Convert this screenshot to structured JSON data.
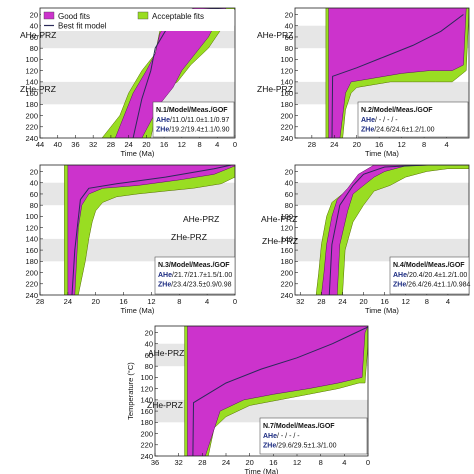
{
  "figure": {
    "legend": {
      "good_label": "Good fits",
      "acceptable_label": "Acceptable fits",
      "best_label": "Best fit model"
    },
    "xlabel": "Time (Ma)",
    "ylabel": "Temperature (°C)",
    "zone_labels": {
      "ahe": "AHe-PRZ",
      "zhe": "ZHe-PRZ"
    },
    "colors": {
      "good": "#cc33cc",
      "acceptable": "#99dd22",
      "best": "#2a2a5a",
      "band": "#e6e6e6",
      "panel_bg": "#ffffff"
    }
  },
  "chart_data": [
    {
      "id": "n1",
      "type": "area",
      "title": "N.1/Model/Meas./GOF",
      "rows": [
        "AHe/11.0/11.0±1.1/0.97",
        "ZHe/19.2/19.4±1.1/0.90"
      ],
      "x_ticks": [
        44,
        40,
        36,
        32,
        28,
        24,
        20,
        16,
        12,
        8,
        4,
        0
      ],
      "xlim": [
        44,
        0
      ],
      "y_ticks": [
        20,
        40,
        60,
        80,
        100,
        120,
        140,
        160,
        180,
        200,
        220,
        240
      ],
      "ylim": [
        0,
        240
      ],
      "ahe_band": [
        40,
        80
      ],
      "zhe_band": [
        140,
        180
      ],
      "acceptable_poly": [
        [
          30,
          240
        ],
        [
          26,
          200
        ],
        [
          24,
          160
        ],
        [
          21,
          120
        ],
        [
          18,
          90
        ],
        [
          17,
          50
        ],
        [
          14,
          15
        ],
        [
          6,
          0
        ],
        [
          0,
          0
        ],
        [
          0,
          8
        ],
        [
          3,
          45
        ],
        [
          6,
          80
        ],
        [
          10,
          110
        ],
        [
          13,
          140
        ],
        [
          17,
          160
        ],
        [
          19,
          240
        ]
      ],
      "good_poly": [
        [
          27,
          240
        ],
        [
          25,
          200
        ],
        [
          23,
          160
        ],
        [
          20,
          120
        ],
        [
          18,
          90
        ],
        [
          17,
          55
        ],
        [
          15,
          25
        ],
        [
          9,
          0
        ],
        [
          2,
          0
        ],
        [
          4,
          30
        ],
        [
          6,
          60
        ],
        [
          9,
          90
        ],
        [
          12,
          120
        ],
        [
          14,
          150
        ],
        [
          17,
          180
        ],
        [
          21,
          240
        ]
      ],
      "best_line": [
        [
          23,
          240
        ],
        [
          21,
          170
        ],
        [
          19,
          120
        ],
        [
          18,
          80
        ],
        [
          15,
          40
        ],
        [
          9,
          12
        ],
        [
          2,
          0
        ]
      ]
    },
    {
      "id": "n2",
      "type": "area",
      "title": "N.2/Model/Meas./GOF",
      "rows": [
        "AHe/ - / - / - ",
        "ZHe/24.6/24.6±1.2/1.00"
      ],
      "x_ticks": [
        28,
        24,
        20,
        16,
        12,
        8,
        4
      ],
      "xlim": [
        31,
        0
      ],
      "y_ticks": [
        20,
        40,
        60,
        80,
        100,
        120,
        140,
        160,
        180,
        200,
        220,
        240
      ],
      "ylim": [
        0,
        240
      ],
      "ahe_band": [
        40,
        80
      ],
      "zhe_band": [
        140,
        180
      ],
      "acceptable_poly": [
        [
          25.5,
          240
        ],
        [
          25.5,
          0
        ],
        [
          0,
          0
        ],
        [
          0,
          10
        ],
        [
          0.5,
          120
        ],
        [
          3,
          140
        ],
        [
          6,
          140
        ],
        [
          10,
          140
        ],
        [
          14,
          140
        ],
        [
          17,
          145
        ],
        [
          20,
          150
        ],
        [
          21,
          160
        ],
        [
          22,
          190
        ],
        [
          22.5,
          240
        ]
      ],
      "good_poly": [
        [
          25,
          240
        ],
        [
          25,
          0
        ],
        [
          0,
          0
        ],
        [
          0.5,
          5
        ],
        [
          1,
          110
        ],
        [
          3,
          120
        ],
        [
          7,
          120
        ],
        [
          12,
          125
        ],
        [
          18,
          135
        ],
        [
          21,
          140
        ],
        [
          22,
          160
        ],
        [
          23,
          240
        ]
      ],
      "best_line": [
        [
          24.4,
          240
        ],
        [
          24.3,
          130
        ],
        [
          20,
          115
        ],
        [
          15,
          95
        ],
        [
          10,
          75
        ],
        [
          5,
          50
        ],
        [
          1,
          20
        ]
      ]
    },
    {
      "id": "n3",
      "type": "area",
      "title": "N.3/Model/Meas./GOF",
      "rows": [
        "AHe/21.7/21.7±1.5/1.00",
        "ZHe/23.4/23.5±0.9/0.98"
      ],
      "x_ticks": [
        28,
        24,
        20,
        16,
        12,
        8,
        4,
        0
      ],
      "xlim": [
        28,
        0
      ],
      "y_ticks": [
        20,
        40,
        60,
        80,
        100,
        120,
        140,
        160,
        180,
        200,
        220,
        240
      ],
      "ylim": [
        0,
        240
      ],
      "ahe_band": [
        40,
        80
      ],
      "zhe_band": [
        140,
        180
      ],
      "acceptable_poly": [
        [
          24.5,
          240
        ],
        [
          24.5,
          0
        ],
        [
          0,
          0
        ],
        [
          0,
          30
        ],
        [
          2,
          42
        ],
        [
          6,
          50
        ],
        [
          10,
          55
        ],
        [
          14,
          60
        ],
        [
          17,
          65
        ],
        [
          19,
          75
        ],
        [
          20,
          90
        ],
        [
          20.5,
          110
        ],
        [
          21,
          140
        ],
        [
          21.5,
          180
        ],
        [
          22.5,
          240
        ]
      ],
      "good_poly": [
        [
          24,
          240
        ],
        [
          24,
          0
        ],
        [
          0,
          0
        ],
        [
          0,
          10
        ],
        [
          3,
          25
        ],
        [
          8,
          35
        ],
        [
          14,
          45
        ],
        [
          19,
          50
        ],
        [
          21,
          60
        ],
        [
          22,
          80
        ],
        [
          22.5,
          120
        ],
        [
          23,
          240
        ]
      ],
      "best_line": [
        [
          23.4,
          240
        ],
        [
          23,
          160
        ],
        [
          22.2,
          70
        ],
        [
          21,
          50
        ],
        [
          17,
          42
        ],
        [
          10,
          30
        ],
        [
          3,
          15
        ],
        [
          0.5,
          0
        ]
      ]
    },
    {
      "id": "n4",
      "type": "area",
      "title": "N.4/Model/Meas./GOF",
      "rows": [
        "AHe/20.4/20.4±1.2/1.00",
        "ZHe/26.4/26.4±1.1/0.984"
      ],
      "x_ticks": [
        32,
        28,
        24,
        20,
        16,
        12,
        8,
        4
      ],
      "xlim": [
        33,
        0
      ],
      "y_ticks": [
        20,
        40,
        60,
        80,
        100,
        120,
        140,
        160,
        180,
        200,
        220,
        240
      ],
      "ylim": [
        0,
        240
      ],
      "ahe_band": [
        40,
        80
      ],
      "zhe_band": [
        140,
        180
      ],
      "acceptable_poly": [
        [
          29,
          240
        ],
        [
          28.5,
          200
        ],
        [
          28,
          150
        ],
        [
          27,
          100
        ],
        [
          26,
          75
        ],
        [
          24,
          60
        ],
        [
          22,
          45
        ],
        [
          20,
          25
        ],
        [
          17,
          10
        ],
        [
          12,
          5
        ],
        [
          6,
          2
        ],
        [
          0,
          0
        ],
        [
          0,
          15
        ],
        [
          4,
          15
        ],
        [
          8,
          20
        ],
        [
          12,
          30
        ],
        [
          15,
          45
        ],
        [
          18,
          55
        ],
        [
          20,
          80
        ],
        [
          22,
          110
        ],
        [
          23.5,
          160
        ],
        [
          24,
          240
        ]
      ],
      "good_poly": [
        [
          28,
          240
        ],
        [
          27.5,
          200
        ],
        [
          27,
          150
        ],
        [
          26,
          100
        ],
        [
          25,
          70
        ],
        [
          23,
          50
        ],
        [
          21,
          25
        ],
        [
          18,
          5
        ],
        [
          10,
          0
        ],
        [
          0,
          0
        ],
        [
          6,
          5
        ],
        [
          12,
          10
        ],
        [
          16,
          20
        ],
        [
          18,
          30
        ],
        [
          20,
          45
        ],
        [
          22,
          60
        ],
        [
          23,
          90
        ],
        [
          24.5,
          150
        ],
        [
          25,
          240
        ]
      ],
      "best_line": [
        [
          26.5,
          240
        ],
        [
          26,
          150
        ],
        [
          24.5,
          80
        ],
        [
          22,
          45
        ],
        [
          20,
          25
        ],
        [
          16,
          12
        ],
        [
          8,
          5
        ],
        [
          2,
          0
        ]
      ]
    },
    {
      "id": "n7",
      "type": "area",
      "title": "N.7/Model/Meas./GOF",
      "rows": [
        "AHe/ - / - / - ",
        "ZHe/29.6/29.5±1.3/1.00"
      ],
      "x_ticks": [
        36,
        32,
        28,
        24,
        20,
        16,
        12,
        8,
        4,
        0
      ],
      "xlim": [
        36,
        0
      ],
      "y_ticks": [
        20,
        40,
        60,
        80,
        100,
        120,
        140,
        160,
        180,
        200,
        220,
        240
      ],
      "ylim": [
        0,
        240
      ],
      "ahe_band": [
        40,
        80
      ],
      "zhe_band": [
        140,
        180
      ],
      "acceptable_poly": [
        [
          31,
          240
        ],
        [
          31,
          0
        ],
        [
          0,
          0
        ],
        [
          0,
          40
        ],
        [
          0.5,
          110
        ],
        [
          1.5,
          110
        ],
        [
          5,
          120
        ],
        [
          10,
          130
        ],
        [
          15,
          140
        ],
        [
          20,
          150
        ],
        [
          24,
          170
        ],
        [
          26,
          190
        ],
        [
          27,
          240
        ]
      ],
      "good_poly": [
        [
          30.5,
          240
        ],
        [
          30.5,
          0
        ],
        [
          0,
          0
        ],
        [
          0.5,
          20
        ],
        [
          1,
          100
        ],
        [
          5,
          110
        ],
        [
          10,
          120
        ],
        [
          16,
          130
        ],
        [
          21,
          140
        ],
        [
          25,
          160
        ],
        [
          27.5,
          240
        ]
      ],
      "best_line": [
        [
          29.6,
          240
        ],
        [
          29.5,
          145
        ],
        [
          24,
          110
        ],
        [
          18,
          85
        ],
        [
          12,
          65
        ],
        [
          6,
          40
        ],
        [
          2,
          20
        ],
        [
          0,
          10
        ]
      ]
    }
  ]
}
